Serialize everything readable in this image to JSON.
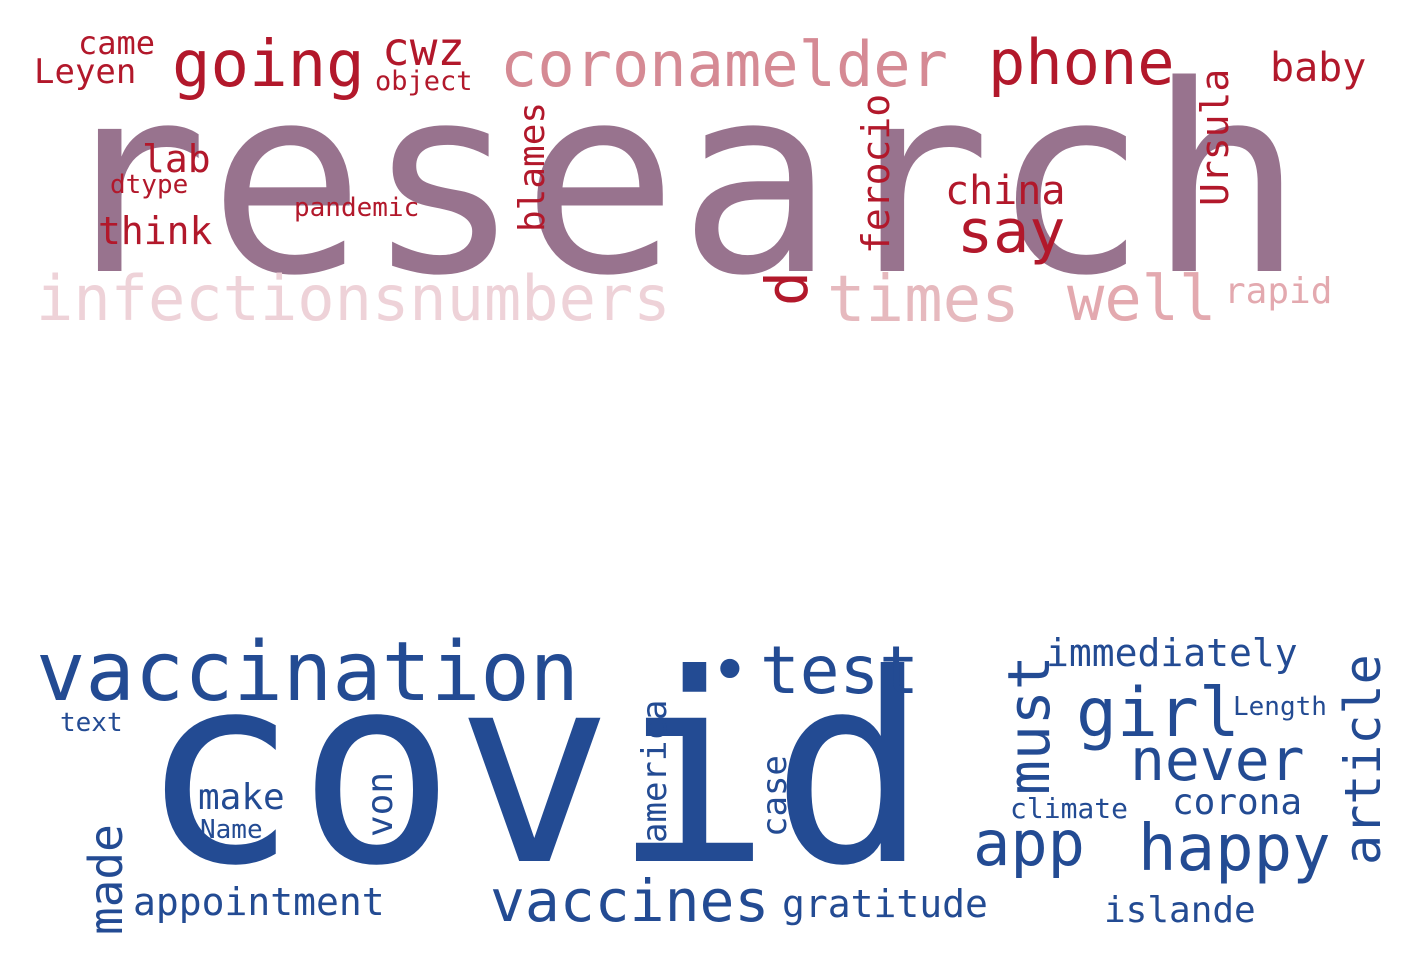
{
  "clouds": [
    {
      "id": "top",
      "words": [
        {
          "text": "research",
          "color": "#98738E",
          "weight": 10
        },
        {
          "text": "infectionsnumbers",
          "color": "#EED2D8",
          "weight": 5
        },
        {
          "text": "coronamelder",
          "color": "#D58A94",
          "weight": 5
        },
        {
          "text": "going",
          "color": "#B2182B",
          "weight": 5
        },
        {
          "text": "phone",
          "color": "#B2182B",
          "weight": 5
        },
        {
          "text": "times",
          "color": "#E6B9BE",
          "weight": 5
        },
        {
          "text": "well",
          "color": "#E3A9AF",
          "weight": 5
        },
        {
          "text": "say",
          "color": "#B2182B",
          "weight": 5
        },
        {
          "text": "cwz",
          "color": "#B2182B",
          "weight": 4
        },
        {
          "text": "d",
          "color": "#B2182B",
          "weight": 4
        },
        {
          "text": "china",
          "color": "#B2182B",
          "weight": 3
        },
        {
          "text": "baby",
          "color": "#B2182B",
          "weight": 3
        },
        {
          "text": "Ursula",
          "color": "#B2182B",
          "weight": 3
        },
        {
          "text": "ferocio",
          "color": "#B2182B",
          "weight": 3
        },
        {
          "text": "blames",
          "color": "#B2182B",
          "weight": 3
        },
        {
          "text": "think",
          "color": "#B2182B",
          "weight": 3
        },
        {
          "text": "lab",
          "color": "#B2182B",
          "weight": 3
        },
        {
          "text": "Leyen",
          "color": "#B2182B",
          "weight": 3
        },
        {
          "text": "came",
          "color": "#B2182B",
          "weight": 3
        },
        {
          "text": "rapid",
          "color": "#E3A9AF",
          "weight": 3
        },
        {
          "text": "object",
          "color": "#B2182B",
          "weight": 2
        },
        {
          "text": "dtype",
          "color": "#B2182B",
          "weight": 2
        },
        {
          "text": "pandemic",
          "color": "#B2182B",
          "weight": 2
        }
      ]
    },
    {
      "id": "bottom",
      "words": [
        {
          "text": "covid",
          "color": "#234B93",
          "weight": 10
        },
        {
          "text": "vaccination",
          "color": "#234B93",
          "weight": 6
        },
        {
          "text": "test",
          "color": "#234B93",
          "weight": 5
        },
        {
          "text": "•",
          "color": "#234B93",
          "weight": 5
        },
        {
          "text": "vaccines",
          "color": "#234B93",
          "weight": 5
        },
        {
          "text": "happy",
          "color": "#234B93",
          "weight": 5
        },
        {
          "text": "app",
          "color": "#234B93",
          "weight": 5
        },
        {
          "text": "girl",
          "color": "#234B93",
          "weight": 5
        },
        {
          "text": "never",
          "color": "#234B93",
          "weight": 4
        },
        {
          "text": "must",
          "color": "#234B93",
          "weight": 4
        },
        {
          "text": "article",
          "color": "#234B93",
          "weight": 4
        },
        {
          "text": "made",
          "color": "#234B93",
          "weight": 4
        },
        {
          "text": "immediately",
          "color": "#234B93",
          "weight": 3
        },
        {
          "text": "appointment",
          "color": "#234B93",
          "weight": 3
        },
        {
          "text": "gratitude",
          "color": "#234B93",
          "weight": 3
        },
        {
          "text": "islande",
          "color": "#234B93",
          "weight": 3
        },
        {
          "text": "corona",
          "color": "#234B93",
          "weight": 3
        },
        {
          "text": "america",
          "color": "#234B93",
          "weight": 3
        },
        {
          "text": "case",
          "color": "#234B93",
          "weight": 3
        },
        {
          "text": "make",
          "color": "#234B93",
          "weight": 3
        },
        {
          "text": "von",
          "color": "#234B93",
          "weight": 3
        },
        {
          "text": "climate",
          "color": "#234B93",
          "weight": 2
        },
        {
          "text": "Length",
          "color": "#234B93",
          "weight": 2
        },
        {
          "text": "Name",
          "color": "#234B93",
          "weight": 2
        },
        {
          "text": "text",
          "color": "#234B93",
          "weight": 2
        }
      ]
    }
  ]
}
